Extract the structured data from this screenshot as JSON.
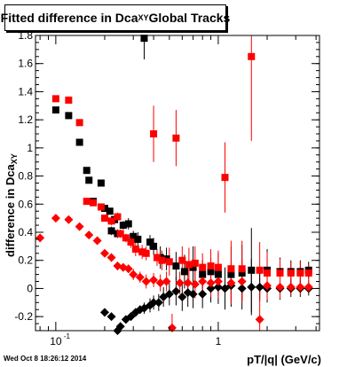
{
  "title": {
    "text": "Fitted difference in Dca",
    "sub": "XY",
    "suffix": " Global Tracks"
  },
  "footer": "Wed Oct  8 18:26:12 2014",
  "colors": {
    "black_series": "#000000",
    "red_series": "#ff0000",
    "axis": "#000000"
  },
  "chart_data": {
    "type": "scatter",
    "xlabel": "pT/|q| (GeV/c)",
    "ylabel": {
      "text": "difference in Dca",
      "sub": "XY"
    },
    "xscale": "log",
    "xlim": [
      0.075,
      4.2
    ],
    "ylim": [
      -0.3,
      1.8
    ],
    "grid": false,
    "x_tick_labels": [
      {
        "v": 0.1,
        "t": "10"
      },
      {
        "v": 1,
        "t": "1"
      }
    ],
    "x_tick_exponent": "-1",
    "y_ticks": [
      -0.2,
      0,
      0.2,
      0.4,
      0.6,
      0.8,
      1,
      1.2,
      1.4,
      1.6,
      1.8
    ],
    "series": [
      {
        "marker": "square",
        "color": "#000000",
        "points": [
          [
            0.1,
            1.27,
            0.02
          ],
          [
            0.12,
            1.23,
            0.02
          ],
          [
            0.14,
            1.04,
            0.02
          ],
          [
            0.155,
            0.84,
            0.02
          ],
          [
            0.16,
            0.77,
            0.02
          ],
          [
            0.17,
            0.62,
            0.02
          ],
          [
            0.19,
            0.75,
            0.02
          ],
          [
            0.2,
            0.57,
            0.02
          ],
          [
            0.215,
            0.55,
            0.02
          ],
          [
            0.22,
            0.41,
            0.03
          ],
          [
            0.23,
            0.49,
            0.03
          ],
          [
            0.24,
            0.39,
            0.03
          ],
          [
            0.26,
            0.45,
            0.03
          ],
          [
            0.28,
            0.46,
            0.04
          ],
          [
            0.3,
            0.37,
            0.04
          ],
          [
            0.32,
            0.35,
            0.05
          ],
          [
            0.35,
            1.78,
            0.15
          ],
          [
            0.38,
            0.33,
            0.05
          ],
          [
            0.4,
            0.3,
            0.06
          ],
          [
            0.44,
            0.22,
            0.08
          ],
          [
            0.48,
            0.21,
            0.08
          ],
          [
            0.55,
            0.16,
            0.1
          ],
          [
            0.62,
            0.12,
            0.12
          ],
          [
            0.7,
            0.15,
            0.15
          ],
          [
            0.8,
            0.1,
            0.1
          ],
          [
            0.9,
            0.12,
            0.1
          ],
          [
            1.0,
            0.1,
            0.15
          ],
          [
            1.2,
            0.1,
            0.2
          ],
          [
            1.4,
            0.11,
            0.2
          ],
          [
            1.6,
            0.13,
            0.3
          ],
          [
            2.0,
            0.13,
            0.15
          ],
          [
            2.4,
            0.12,
            0.1
          ],
          [
            2.8,
            0.12,
            0.08
          ],
          [
            3.2,
            0.12,
            0.08
          ],
          [
            3.6,
            0.13,
            0.06
          ]
        ]
      },
      {
        "marker": "square",
        "color": "#ff0000",
        "points": [
          [
            0.1,
            1.35,
            0.02
          ],
          [
            0.12,
            1.34,
            0.02
          ],
          [
            0.14,
            1.18,
            0.02
          ],
          [
            0.155,
            0.62,
            0.02
          ],
          [
            0.17,
            0.61,
            0.02
          ],
          [
            0.19,
            0.58,
            0.02
          ],
          [
            0.2,
            0.5,
            0.02
          ],
          [
            0.22,
            0.48,
            0.03
          ],
          [
            0.24,
            0.51,
            0.03
          ],
          [
            0.25,
            0.39,
            0.03
          ],
          [
            0.27,
            0.36,
            0.03
          ],
          [
            0.29,
            0.33,
            0.04
          ],
          [
            0.31,
            0.28,
            0.05
          ],
          [
            0.34,
            0.26,
            0.05
          ],
          [
            0.36,
            0.25,
            0.05
          ],
          [
            0.4,
            1.1,
            0.2
          ],
          [
            0.42,
            0.22,
            0.06
          ],
          [
            0.45,
            0.2,
            0.07
          ],
          [
            0.5,
            0.19,
            0.1
          ],
          [
            0.55,
            1.07,
            0.2
          ],
          [
            0.6,
            0.2,
            0.1
          ],
          [
            0.66,
            0.17,
            0.12
          ],
          [
            0.72,
            0.18,
            0.12
          ],
          [
            0.8,
            0.15,
            0.1
          ],
          [
            0.9,
            0.16,
            0.12
          ],
          [
            1.0,
            0.15,
            0.12
          ],
          [
            1.1,
            0.79,
            0.25
          ],
          [
            1.2,
            0.14,
            0.2
          ],
          [
            1.4,
            0.14,
            0.2
          ],
          [
            1.6,
            1.65,
            0.6
          ],
          [
            1.8,
            0.13,
            0.2
          ],
          [
            2.0,
            0.11,
            0.15
          ],
          [
            2.4,
            0.11,
            0.1
          ],
          [
            2.8,
            0.11,
            0.08
          ],
          [
            3.2,
            0.11,
            0.08
          ],
          [
            3.6,
            0.11,
            0.06
          ]
        ]
      },
      {
        "marker": "diamond",
        "color": "#000000",
        "points": [
          [
            0.2,
            -0.17,
            0.02
          ],
          [
            0.22,
            -0.2,
            0.02
          ],
          [
            0.24,
            -0.3,
            0.02
          ],
          [
            0.25,
            -0.27,
            0.02
          ],
          [
            0.27,
            -0.22,
            0.02
          ],
          [
            0.29,
            -0.2,
            0.03
          ],
          [
            0.31,
            -0.17,
            0.03
          ],
          [
            0.33,
            -0.15,
            0.03
          ],
          [
            0.35,
            -0.14,
            0.04
          ],
          [
            0.38,
            -0.12,
            0.05
          ],
          [
            0.4,
            -0.1,
            0.05
          ],
          [
            0.43,
            -0.1,
            0.06
          ],
          [
            0.46,
            -0.06,
            0.07
          ],
          [
            0.5,
            -0.04,
            0.08
          ],
          [
            0.55,
            -0.02,
            0.1
          ],
          [
            0.6,
            -0.06,
            0.1
          ],
          [
            0.65,
            -0.03,
            0.1
          ],
          [
            0.7,
            -0.04,
            0.1
          ],
          [
            0.8,
            -0.04,
            0.1
          ],
          [
            0.9,
            0.0,
            0.1
          ],
          [
            1.0,
            0.01,
            0.12
          ],
          [
            1.1,
            0.0,
            0.15
          ],
          [
            1.2,
            0.02,
            0.15
          ],
          [
            1.4,
            0.0,
            0.15
          ],
          [
            1.6,
            0.01,
            0.2
          ],
          [
            1.8,
            0.01,
            0.1
          ],
          [
            2.0,
            0.0,
            0.1
          ],
          [
            2.4,
            0.0,
            0.08
          ],
          [
            2.8,
            0.0,
            0.06
          ],
          [
            3.2,
            0.0,
            0.06
          ],
          [
            3.6,
            0.0,
            0.05
          ]
        ]
      },
      {
        "marker": "diamond",
        "color": "#ff0000",
        "points": [
          [
            0.08,
            0.36,
            0.02
          ],
          [
            0.1,
            0.5,
            0.02
          ],
          [
            0.12,
            0.49,
            0.02
          ],
          [
            0.14,
            0.44,
            0.02
          ],
          [
            0.16,
            0.38,
            0.02
          ],
          [
            0.18,
            0.34,
            0.02
          ],
          [
            0.2,
            0.25,
            0.02
          ],
          [
            0.22,
            0.22,
            0.03
          ],
          [
            0.24,
            0.16,
            0.03
          ],
          [
            0.26,
            0.15,
            0.03
          ],
          [
            0.28,
            0.14,
            0.03
          ],
          [
            0.3,
            0.1,
            0.04
          ],
          [
            0.33,
            0.08,
            0.04
          ],
          [
            0.36,
            0.05,
            0.05
          ],
          [
            0.4,
            0.06,
            0.05
          ],
          [
            0.44,
            0.04,
            0.06
          ],
          [
            0.48,
            0.05,
            0.07
          ],
          [
            0.52,
            -0.28,
            0.1
          ],
          [
            0.58,
            0.04,
            0.08
          ],
          [
            0.65,
            0.04,
            0.1
          ],
          [
            0.72,
            0.03,
            0.1
          ],
          [
            0.8,
            0.05,
            0.1
          ],
          [
            0.9,
            0.04,
            0.1
          ],
          [
            1.0,
            0.05,
            0.12
          ],
          [
            1.2,
            0.04,
            0.15
          ],
          [
            1.4,
            0.05,
            0.15
          ],
          [
            1.8,
            -0.22,
            0.2
          ],
          [
            2.0,
            0.02,
            0.1
          ],
          [
            2.4,
            0.01,
            0.08
          ],
          [
            2.8,
            0.01,
            0.06
          ],
          [
            3.2,
            0.01,
            0.06
          ],
          [
            3.6,
            0.01,
            0.05
          ]
        ]
      }
    ]
  }
}
